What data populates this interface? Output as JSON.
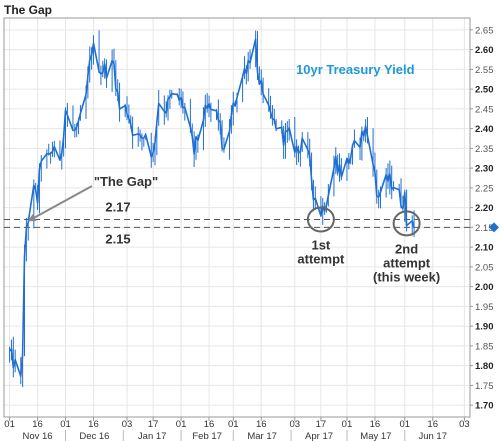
{
  "chart_data": {
    "type": "candlestick",
    "title": "The Gap",
    "series_label": "10yr Treasury Yield",
    "colors": {
      "series": "#1f6fd1",
      "series_label": "#1f9ad6",
      "current": "#1f6fd1",
      "grid": "#e6e6e6"
    },
    "ylim": [
      1.67,
      2.68
    ],
    "yticks": [
      "1.70",
      "1.75",
      "1.80",
      "1.85",
      "1.90",
      "1.95",
      "2.00",
      "2.05",
      "2.10",
      "2.15",
      "2.20",
      "2.25",
      "2.30",
      "2.35",
      "2.40",
      "2.45",
      "2.50",
      "2.55",
      "2.60",
      "2.65"
    ],
    "y_bold_ticks": [
      "1.70",
      "1.80",
      "1.90",
      "2.00",
      "2.10",
      "2.20",
      "2.30",
      "2.40",
      "2.50",
      "2.60"
    ],
    "current_value": 2.15,
    "xlim": [
      "2016-10-29",
      "2017-07-06"
    ],
    "x_day_ticks": [
      {
        "date": "2016-11-01",
        "label": "01"
      },
      {
        "date": "2016-11-16",
        "label": "16"
      },
      {
        "date": "2016-12-01",
        "label": "01"
      },
      {
        "date": "2016-12-16",
        "label": "16"
      },
      {
        "date": "2017-01-03",
        "label": "03"
      },
      {
        "date": "2017-01-17",
        "label": "17"
      },
      {
        "date": "2017-02-01",
        "label": "01"
      },
      {
        "date": "2017-02-16",
        "label": "16"
      },
      {
        "date": "2017-03-01",
        "label": "01"
      },
      {
        "date": "2017-03-16",
        "label": "16"
      },
      {
        "date": "2017-04-03",
        "label": "03"
      },
      {
        "date": "2017-04-17",
        "label": "17"
      },
      {
        "date": "2017-05-01",
        "label": "01"
      },
      {
        "date": "2017-05-16",
        "label": "16"
      },
      {
        "date": "2017-06-01",
        "label": "01"
      },
      {
        "date": "2017-06-16",
        "label": "16"
      },
      {
        "date": "2017-07-03",
        "label": "03"
      }
    ],
    "x_month_labels": [
      {
        "start": "2016-11-01",
        "end": "2016-12-01",
        "label": "Nov 16"
      },
      {
        "start": "2016-12-01",
        "end": "2017-01-01",
        "label": "Dec 16"
      },
      {
        "start": "2017-01-01",
        "end": "2017-02-01",
        "label": "Jan 17"
      },
      {
        "start": "2017-02-01",
        "end": "2017-03-01",
        "label": "Feb 17"
      },
      {
        "start": "2017-03-01",
        "end": "2017-04-01",
        "label": "Mar 17"
      },
      {
        "start": "2017-04-01",
        "end": "2017-05-01",
        "label": "Apr 17"
      },
      {
        "start": "2017-05-01",
        "end": "2017-06-01",
        "label": "May 17"
      },
      {
        "start": "2017-06-01",
        "end": "2017-07-01",
        "label": "Jun 17"
      }
    ],
    "trend": [
      [
        "2016-11-01",
        1.83
      ],
      [
        "2016-11-04",
        1.8
      ],
      [
        "2016-11-07",
        1.76
      ],
      [
        "2016-11-08",
        1.84
      ],
      [
        "2016-11-09",
        2.06
      ],
      [
        "2016-11-10",
        2.15
      ],
      [
        "2016-11-14",
        2.24
      ],
      [
        "2016-11-16",
        2.22
      ],
      [
        "2016-11-18",
        2.33
      ],
      [
        "2016-11-22",
        2.32
      ],
      [
        "2016-11-25",
        2.36
      ],
      [
        "2016-11-28",
        2.3
      ],
      [
        "2016-12-01",
        2.45
      ],
      [
        "2016-12-05",
        2.39
      ],
      [
        "2016-12-08",
        2.4
      ],
      [
        "2016-12-12",
        2.48
      ],
      [
        "2016-12-15",
        2.6
      ],
      [
        "2016-12-16",
        2.6
      ],
      [
        "2016-12-20",
        2.55
      ],
      [
        "2016-12-23",
        2.55
      ],
      [
        "2016-12-27",
        2.56
      ],
      [
        "2016-12-30",
        2.45
      ],
      [
        "2017-01-03",
        2.45
      ],
      [
        "2017-01-06",
        2.4
      ],
      [
        "2017-01-10",
        2.37
      ],
      [
        "2017-01-13",
        2.39
      ],
      [
        "2017-01-17",
        2.33
      ],
      [
        "2017-01-20",
        2.47
      ],
      [
        "2017-01-24",
        2.45
      ],
      [
        "2017-01-27",
        2.48
      ],
      [
        "2017-02-01",
        2.47
      ],
      [
        "2017-02-03",
        2.45
      ],
      [
        "2017-02-08",
        2.34
      ],
      [
        "2017-02-13",
        2.43
      ],
      [
        "2017-02-16",
        2.45
      ],
      [
        "2017-02-21",
        2.43
      ],
      [
        "2017-02-24",
        2.33
      ],
      [
        "2017-03-01",
        2.45
      ],
      [
        "2017-03-03",
        2.49
      ],
      [
        "2017-03-08",
        2.56
      ],
      [
        "2017-03-13",
        2.62
      ],
      [
        "2017-03-15",
        2.5
      ],
      [
        "2017-03-17",
        2.5
      ],
      [
        "2017-03-21",
        2.42
      ],
      [
        "2017-03-24",
        2.41
      ],
      [
        "2017-03-28",
        2.38
      ],
      [
        "2017-03-31",
        2.38
      ],
      [
        "2017-04-05",
        2.34
      ],
      [
        "2017-04-07",
        2.38
      ],
      [
        "2017-04-11",
        2.31
      ],
      [
        "2017-04-13",
        2.24
      ],
      [
        "2017-04-17",
        2.19
      ],
      [
        "2017-04-19",
        2.21
      ],
      [
        "2017-04-21",
        2.24
      ],
      [
        "2017-04-25",
        2.32
      ],
      [
        "2017-04-28",
        2.29
      ],
      [
        "2017-05-02",
        2.32
      ],
      [
        "2017-05-05",
        2.35
      ],
      [
        "2017-05-09",
        2.38
      ],
      [
        "2017-05-11",
        2.4
      ],
      [
        "2017-05-15",
        2.33
      ],
      [
        "2017-05-17",
        2.23
      ],
      [
        "2017-05-19",
        2.24
      ],
      [
        "2017-05-23",
        2.27
      ],
      [
        "2017-05-26",
        2.26
      ],
      [
        "2017-05-30",
        2.22
      ],
      [
        "2017-06-01",
        2.22
      ],
      [
        "2017-06-02",
        2.16
      ],
      [
        "2017-06-05",
        2.18
      ],
      [
        "2017-06-06",
        2.15
      ]
    ],
    "reference_lines": [
      {
        "value": 2.17,
        "label": "2.17"
      },
      {
        "value": 2.15,
        "label": "2.15"
      }
    ],
    "annotations": {
      "gap_label": "\"The Gap\"",
      "gap_arrow_date": "2016-11-10",
      "attempts": [
        {
          "date": "2017-04-17",
          "value": 2.17,
          "lines": [
            "1st",
            "attempt"
          ]
        },
        {
          "date": "2017-06-02",
          "value": 2.16,
          "lines": [
            "2nd",
            "attempt",
            "(this week)"
          ]
        }
      ]
    }
  }
}
